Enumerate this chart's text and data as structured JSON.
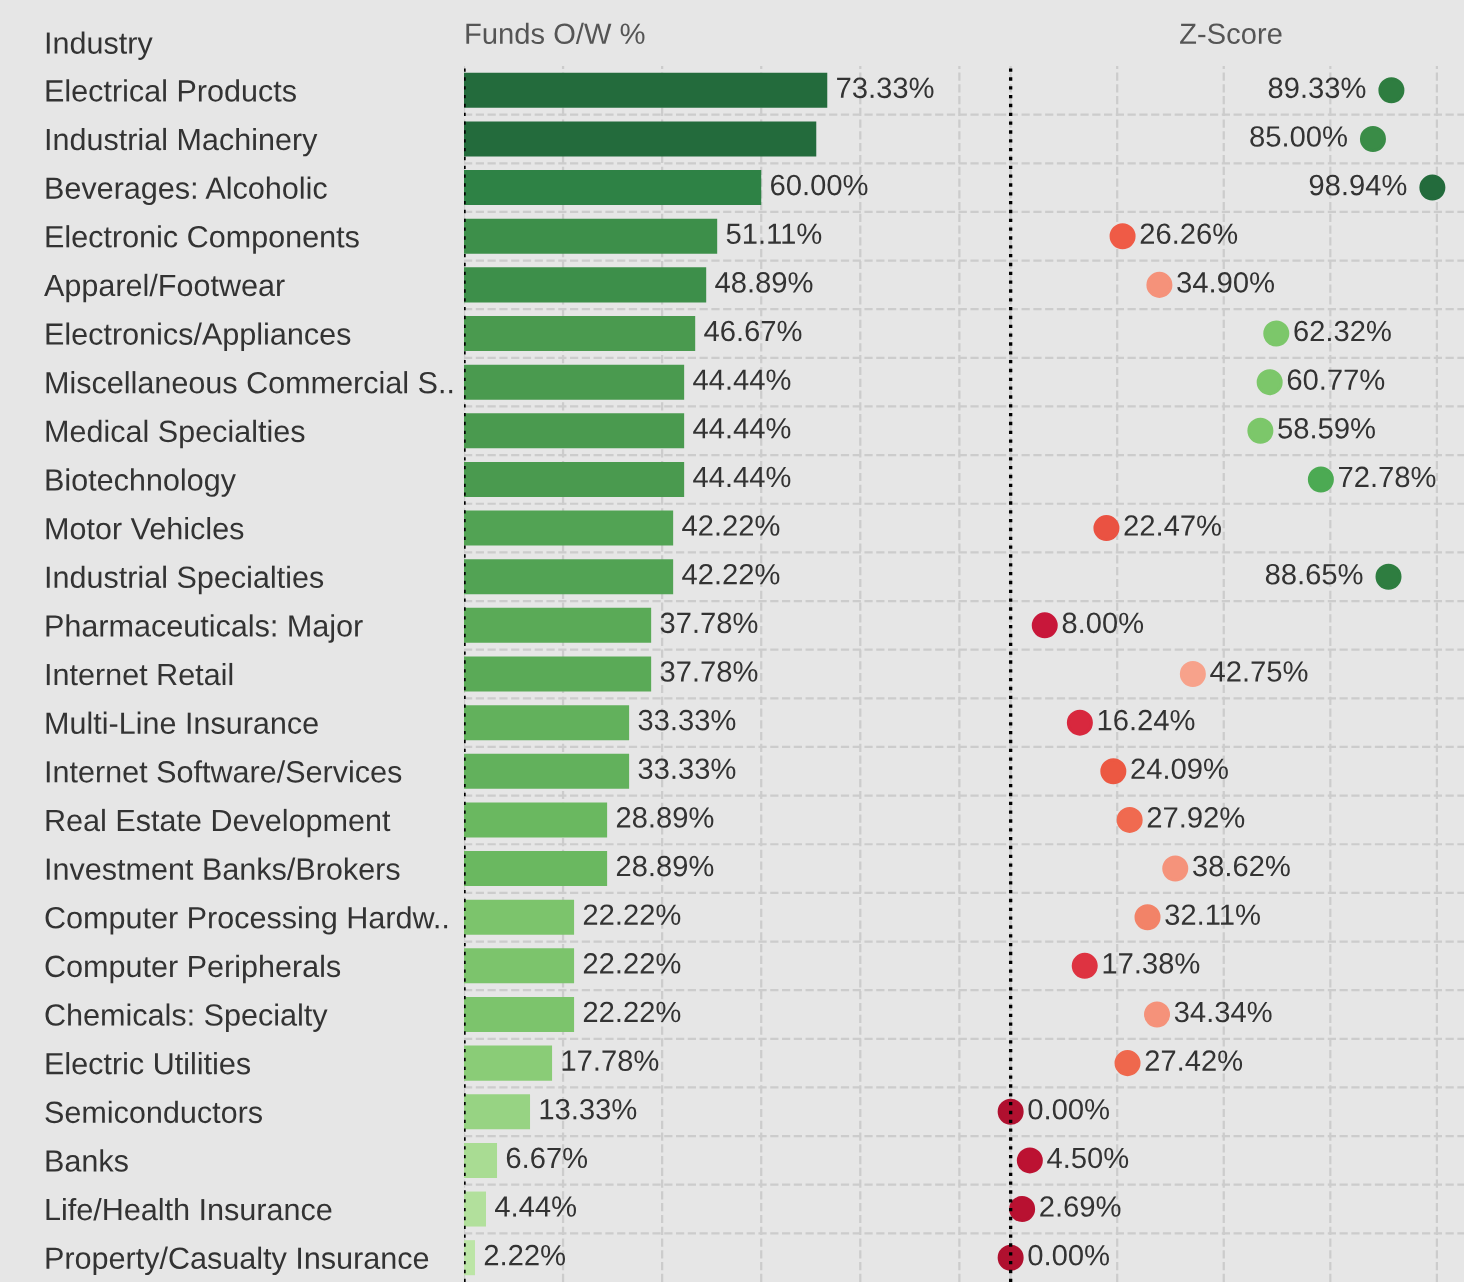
{
  "chart_data": [
    {
      "type": "bar",
      "orientation": "horizontal",
      "title": "Funds O/W %",
      "ylabel": "Industry",
      "grid": true,
      "tick_labels": "y",
      "categories": [
        "Electrical Products",
        "Industrial Machinery",
        "Beverages: Alcoholic",
        "Electronic Components",
        "Apparel/Footwear",
        "Electronics/Appliances",
        "Miscellaneous Commercial S..",
        "Medical Specialties",
        "Biotechnology",
        "Motor Vehicles",
        "Industrial Specialties",
        "Pharmaceuticals: Major",
        "Internet Retail",
        "Multi-Line Insurance",
        "Internet Software/Services",
        "Real Estate Development",
        "Investment Banks/Brokers",
        "Computer Processing Hardw..",
        "Computer Peripherals",
        "Chemicals: Specialty",
        "Electric Utilities",
        "Semiconductors",
        "Banks",
        "Life/Health Insurance",
        "Property/Casualty Insurance"
      ],
      "values": [
        73.33,
        71.11,
        60.0,
        51.11,
        48.89,
        46.67,
        44.44,
        44.44,
        44.44,
        42.22,
        42.22,
        37.78,
        37.78,
        33.33,
        33.33,
        28.89,
        28.89,
        22.22,
        22.22,
        22.22,
        17.78,
        13.33,
        6.67,
        4.44,
        2.22
      ],
      "value_labels": [
        "73.33%",
        null,
        "60.00%",
        "51.11%",
        "48.89%",
        "46.67%",
        "44.44%",
        "44.44%",
        "44.44%",
        "42.22%",
        "42.22%",
        "37.78%",
        "37.78%",
        "33.33%",
        "33.33%",
        "28.89%",
        "28.89%",
        "22.22%",
        "22.22%",
        "22.22%",
        "17.78%",
        "13.33%",
        "6.67%",
        "4.44%",
        "2.22%"
      ],
      "colors": [
        "#236b3c",
        "#236b3c",
        "#2e8245",
        "#3d8f4a",
        "#3d8f4a",
        "#4a9a4f",
        "#4a9a4f",
        "#4a9a4f",
        "#4a9a4f",
        "#52a354",
        "#52a354",
        "#5aaa57",
        "#5aaa57",
        "#62b15c",
        "#62b15c",
        "#6ab860",
        "#6ab860",
        "#7cc46c",
        "#7cc46c",
        "#7cc46c",
        "#8acc77",
        "#97d383",
        "#a9dc93",
        "#b2e09c",
        "#bce5a6"
      ],
      "ref_lines": [
        {
          "axis": "x",
          "value": 0,
          "line_style": "dotted",
          "color": "#000000"
        }
      ]
    },
    {
      "type": "scatter",
      "orientation": "horizontal",
      "title": "Z-Score",
      "grid": true,
      "tick_labels": false,
      "values": [
        89.33,
        85.0,
        98.94,
        26.26,
        34.9,
        62.32,
        60.77,
        58.59,
        72.78,
        22.47,
        88.65,
        8.0,
        42.75,
        16.24,
        24.09,
        27.92,
        38.62,
        32.11,
        17.38,
        34.34,
        27.42,
        0.0,
        4.5,
        2.69,
        0.0
      ],
      "value_labels": [
        "89.33%",
        "85.00%",
        "98.94%",
        "26.26%",
        "34.90%",
        "62.32%",
        "60.77%",
        "58.59%",
        "72.78%",
        "22.47%",
        "88.65%",
        "8.00%",
        "42.75%",
        "16.24%",
        "24.09%",
        "27.92%",
        "38.62%",
        "32.11%",
        "17.38%",
        "34.34%",
        "27.42%",
        "0.00%",
        "4.50%",
        "2.69%",
        "0.00%"
      ],
      "colors": [
        "#2e7d40",
        "#3a8c47",
        "#236b3c",
        "#ef5b46",
        "#f5927a",
        "#7cc76a",
        "#7cc76a",
        "#7cc76a",
        "#4caa53",
        "#ea5242",
        "#2e7d40",
        "#c8173a",
        "#f7a28b",
        "#d8283e",
        "#ec5842",
        "#f06a50",
        "#f5937b",
        "#f28368",
        "#de3341",
        "#f5927a",
        "#ef684d",
        "#b0102f",
        "#bc1232",
        "#b81131",
        "#b0102f"
      ],
      "marker": "circle",
      "ref_lines": [
        {
          "axis": "x",
          "value": 0,
          "line_style": "dotted",
          "color": "#000000"
        }
      ]
    }
  ]
}
